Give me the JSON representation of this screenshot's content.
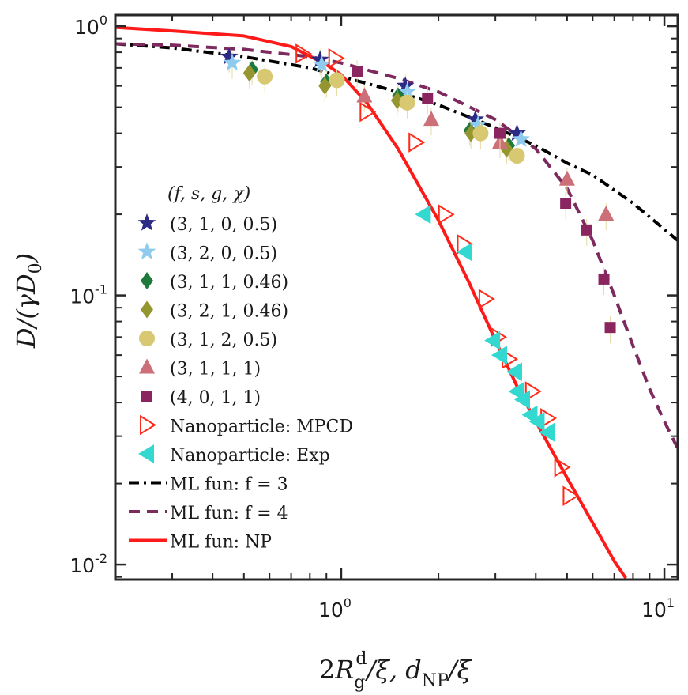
{
  "chart_data": {
    "type": "scatter",
    "xscale": "log",
    "yscale": "log",
    "xlim": [
      0.2,
      11
    ],
    "ylim": [
      0.0088,
      1.1
    ],
    "xlabel": "2R_g^d/ξ, d_NP/ξ",
    "ylabel": "D/(γD_0)",
    "xticks": [
      {
        "value": 1,
        "base": "10",
        "exp": "0"
      },
      {
        "value": 10,
        "base": "10",
        "exp": "1"
      }
    ],
    "yticks": [
      {
        "value": 0.01,
        "base": "10",
        "exp": "-2"
      },
      {
        "value": 0.1,
        "base": "10",
        "exp": "-1"
      },
      {
        "value": 1,
        "base": "10",
        "exp": "0"
      }
    ],
    "legend_title": "(f, s, g, χ)",
    "legend_position": "left",
    "series": [
      {
        "name": "(3, 1, 0, 0.5)",
        "marker": "star",
        "color": "#2b2a85",
        "points": [
          [
            0.45,
            0.77
          ],
          [
            0.86,
            0.75
          ],
          [
            1.58,
            0.6
          ],
          [
            2.6,
            0.45
          ],
          [
            3.5,
            0.4
          ]
        ]
      },
      {
        "name": "(3, 2, 0, 0.5)",
        "marker": "star",
        "color": "#8ecbee",
        "points": [
          [
            0.46,
            0.73
          ],
          [
            0.87,
            0.72
          ],
          [
            1.6,
            0.57
          ],
          [
            2.65,
            0.43
          ],
          [
            3.6,
            0.38
          ]
        ]
      },
      {
        "name": "(3, 1, 1, 0.46)",
        "marker": "diamond",
        "color": "#1d7a3c",
        "points": [
          [
            0.53,
            0.69
          ],
          [
            0.9,
            0.62
          ],
          [
            1.5,
            0.55
          ],
          [
            2.5,
            0.41
          ],
          [
            3.3,
            0.36
          ]
        ]
      },
      {
        "name": "(3, 2, 1, 0.46)",
        "marker": "diamond",
        "color": "#969630",
        "points": [
          [
            0.52,
            0.67
          ],
          [
            0.89,
            0.6
          ],
          [
            1.49,
            0.53
          ],
          [
            2.52,
            0.4
          ],
          [
            3.25,
            0.35
          ]
        ]
      },
      {
        "name": "(3, 1, 2, 0.5)",
        "marker": "circle",
        "color": "#d8c872",
        "points": [
          [
            0.58,
            0.65
          ],
          [
            0.97,
            0.63
          ],
          [
            1.6,
            0.52
          ],
          [
            2.7,
            0.4
          ],
          [
            3.5,
            0.33
          ]
        ]
      },
      {
        "name": "(3, 1, 1, 1)",
        "marker": "triangle",
        "color": "#cc6f78",
        "points": [
          [
            1.18,
            0.55
          ],
          [
            1.9,
            0.45
          ],
          [
            3.1,
            0.37
          ],
          [
            5.0,
            0.27
          ],
          [
            6.6,
            0.2
          ]
        ]
      },
      {
        "name": "(4, 0, 1, 1)",
        "marker": "square",
        "color": "#8b2560",
        "points": [
          [
            1.12,
            0.68
          ],
          [
            1.85,
            0.54
          ],
          [
            3.1,
            0.4
          ],
          [
            4.95,
            0.22
          ],
          [
            5.75,
            0.175
          ],
          [
            6.5,
            0.115
          ],
          [
            6.8,
            0.076
          ]
        ]
      },
      {
        "name": "Nanoparticle: MPCD",
        "marker": "triangle-right",
        "color": "#ff2a1a",
        "points": [
          [
            0.76,
            0.79
          ],
          [
            0.96,
            0.76
          ],
          [
            1.2,
            0.48
          ],
          [
            1.7,
            0.37
          ],
          [
            2.1,
            0.2
          ],
          [
            2.4,
            0.155
          ],
          [
            2.8,
            0.097
          ],
          [
            3.05,
            0.07
          ],
          [
            3.3,
            0.058
          ],
          [
            3.9,
            0.044
          ],
          [
            4.35,
            0.035
          ],
          [
            4.8,
            0.023
          ],
          [
            5.1,
            0.018
          ]
        ]
      },
      {
        "name": "Nanoparticle: Exp",
        "marker": "triangle-left",
        "color": "#33d9d0",
        "points": [
          [
            1.8,
            0.2
          ],
          [
            2.42,
            0.145
          ],
          [
            2.95,
            0.068
          ],
          [
            3.1,
            0.06
          ],
          [
            3.45,
            0.052
          ],
          [
            3.5,
            0.044
          ],
          [
            3.65,
            0.041
          ],
          [
            3.85,
            0.036
          ],
          [
            4.05,
            0.034
          ],
          [
            4.35,
            0.031
          ]
        ]
      }
    ],
    "curves": [
      {
        "name": "ML fun: f = 3",
        "style": "dashdot",
        "color": "#000000",
        "x": [
          0.2,
          0.3,
          0.5,
          0.8,
          1.0,
          1.5,
          2,
          3,
          4,
          5,
          6,
          8,
          11
        ],
        "y": [
          0.86,
          0.83,
          0.77,
          0.7,
          0.65,
          0.57,
          0.51,
          0.42,
          0.36,
          0.31,
          0.28,
          0.22,
          0.16
        ]
      },
      {
        "name": "ML fun: f = 4",
        "style": "dash",
        "color": "#7d2a5e",
        "x": [
          0.2,
          0.3,
          0.5,
          0.8,
          1.0,
          1.5,
          2,
          3,
          4,
          5,
          6,
          7,
          8,
          9,
          10,
          11
        ],
        "y": [
          0.86,
          0.85,
          0.82,
          0.77,
          0.73,
          0.64,
          0.57,
          0.45,
          0.35,
          0.25,
          0.16,
          0.1,
          0.065,
          0.045,
          0.034,
          0.027
        ]
      },
      {
        "name": "ML fun: NP",
        "style": "solid",
        "color": "#ff1a1a",
        "x": [
          0.2,
          0.3,
          0.5,
          0.7,
          0.9,
          1.0,
          1.2,
          1.5,
          2.0,
          2.5,
          3.0,
          3.5,
          4.0,
          5.0,
          6.0,
          7.0,
          7.6
        ],
        "y": [
          0.99,
          0.96,
          0.92,
          0.84,
          0.72,
          0.66,
          0.52,
          0.35,
          0.19,
          0.11,
          0.068,
          0.046,
          0.034,
          0.021,
          0.0143,
          0.0103,
          0.0089
        ]
      }
    ],
    "legend": [
      {
        "key": "s0",
        "label": "(3, 1, 0, 0.5)"
      },
      {
        "key": "s1",
        "label": "(3, 2, 0, 0.5)"
      },
      {
        "key": "s2",
        "label": "(3, 1, 1, 0.46)"
      },
      {
        "key": "s3",
        "label": "(3, 2, 1, 0.46)"
      },
      {
        "key": "s4",
        "label": "(3, 1, 2, 0.5)"
      },
      {
        "key": "s5",
        "label": "(3, 1, 1, 1)"
      },
      {
        "key": "s6",
        "label": "(4, 0, 1, 1)"
      },
      {
        "key": "s7",
        "label": "Nanoparticle: MPCD"
      },
      {
        "key": "s8",
        "label": "Nanoparticle: Exp"
      },
      {
        "key": "c0",
        "label": "ML fun: f = 3"
      },
      {
        "key": "c1",
        "label": "ML fun: f = 4"
      },
      {
        "key": "c2",
        "label": "ML fun: NP"
      }
    ]
  }
}
